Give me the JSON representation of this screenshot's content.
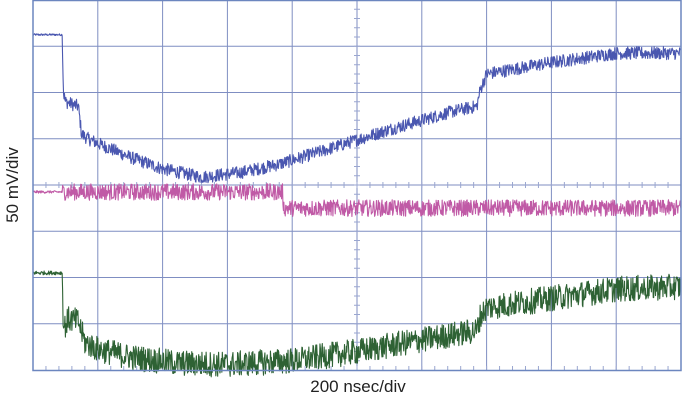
{
  "chart_data": {
    "type": "line",
    "xlabel": "200 nsec/div",
    "ylabel": "50 mV/div",
    "x_divisions": 10,
    "y_divisions": 8,
    "x_unit": "div",
    "y_unit": "div",
    "grid": true,
    "colors": {
      "frame": "#6c86bf",
      "grid": "#7f8ec2",
      "ticks": "#9aa6d0"
    },
    "series": [
      {
        "color": "#4a57b0",
        "noise": 0.14,
        "points": [
          [
            0.0,
            7.25
          ],
          [
            0.45,
            7.25
          ],
          [
            0.47,
            6.0
          ],
          [
            0.5,
            5.8
          ],
          [
            0.7,
            5.7
          ],
          [
            0.75,
            5.1
          ],
          [
            0.85,
            5.0
          ],
          [
            1.0,
            4.9
          ],
          [
            1.5,
            4.6
          ],
          [
            2.0,
            4.35
          ],
          [
            2.6,
            4.17
          ],
          [
            3.2,
            4.27
          ],
          [
            3.8,
            4.45
          ],
          [
            4.5,
            4.75
          ],
          [
            5.5,
            5.2
          ],
          [
            6.5,
            5.6
          ],
          [
            6.85,
            5.7
          ],
          [
            6.9,
            6.05
          ],
          [
            7.0,
            6.4
          ],
          [
            8.0,
            6.65
          ],
          [
            9.0,
            6.85
          ],
          [
            10.0,
            6.85
          ]
        ]
      },
      {
        "color": "#c05aa6",
        "noise": 0.18,
        "points": [
          [
            0.0,
            3.85
          ],
          [
            3.85,
            3.85
          ],
          [
            3.87,
            3.5
          ],
          [
            10.0,
            3.5
          ]
        ]
      },
      {
        "color": "#2e6234",
        "noise": 0.28,
        "points": [
          [
            0.0,
            2.1
          ],
          [
            0.45,
            2.1
          ],
          [
            0.47,
            0.9
          ],
          [
            0.55,
            1.1
          ],
          [
            0.7,
            1.05
          ],
          [
            0.8,
            0.6
          ],
          [
            1.0,
            0.45
          ],
          [
            1.5,
            0.28
          ],
          [
            2.2,
            0.15
          ],
          [
            3.0,
            0.12
          ],
          [
            4.0,
            0.2
          ],
          [
            5.0,
            0.4
          ],
          [
            6.0,
            0.65
          ],
          [
            6.85,
            0.85
          ],
          [
            6.9,
            1.15
          ],
          [
            7.0,
            1.35
          ],
          [
            8.0,
            1.55
          ],
          [
            9.0,
            1.75
          ],
          [
            10.0,
            1.8
          ]
        ]
      }
    ]
  }
}
